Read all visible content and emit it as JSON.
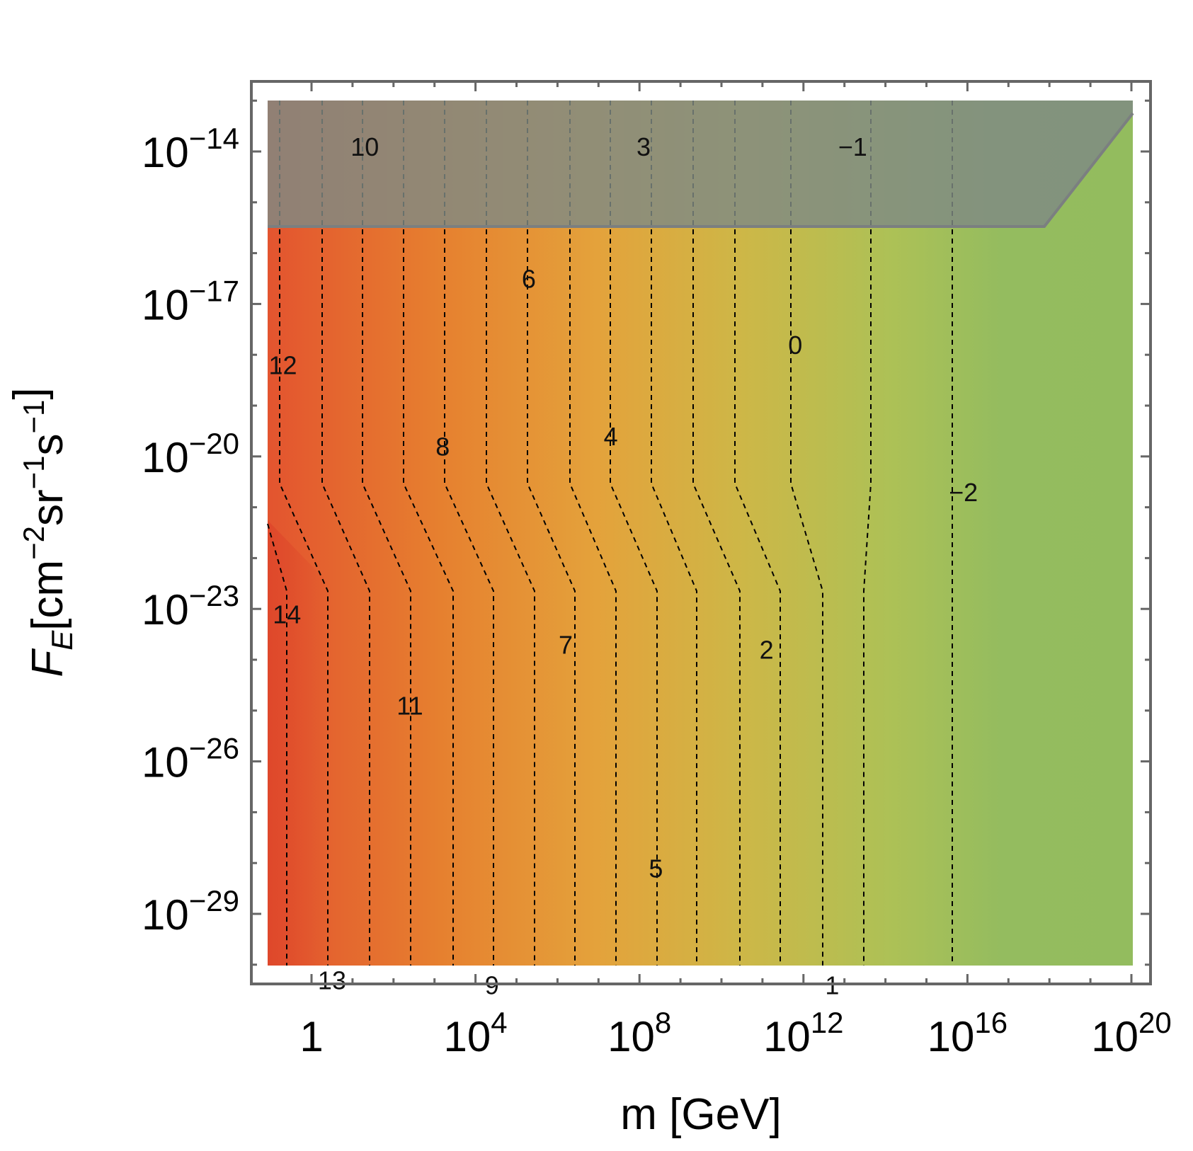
{
  "chart_data": {
    "type": "contour",
    "xlabel": "m [GeV]",
    "ylabel_main": "F",
    "ylabel_sub": "E",
    "ylabel_rest": "[cm",
    "ylabel_units": [
      {
        "base": "[cm",
        "exp": "−2"
      },
      {
        "base": "sr",
        "exp": "−1"
      },
      {
        "base": "s",
        "exp": "−1"
      },
      {
        "base": "]",
        "exp": ""
      }
    ],
    "x_scale": "log",
    "y_scale": "log",
    "xlim_log10": [
      -1.5,
      20
    ],
    "ylim_log10": [
      -30.5,
      -13
    ],
    "x_ticks": [
      {
        "value_log10": 0,
        "label": "1",
        "base": "1",
        "exp": ""
      },
      {
        "value_log10": 4,
        "label": "10^4",
        "base": "10",
        "exp": "4"
      },
      {
        "value_log10": 8,
        "label": "10^8",
        "base": "10",
        "exp": "8"
      },
      {
        "value_log10": 12,
        "label": "10^12",
        "base": "10",
        "exp": "12"
      },
      {
        "value_log10": 16,
        "label": "10^16",
        "base": "10",
        "exp": "16"
      },
      {
        "value_log10": 20,
        "label": "10^20",
        "base": "10",
        "exp": "20"
      }
    ],
    "y_ticks": [
      {
        "value_log10": -14,
        "label": "10^−14",
        "base": "10",
        "exp": "−14"
      },
      {
        "value_log10": -17,
        "label": "10^−17",
        "base": "10",
        "exp": "−17"
      },
      {
        "value_log10": -20,
        "label": "10^−20",
        "base": "10",
        "exp": "−20"
      },
      {
        "value_log10": -23,
        "label": "10^−23",
        "base": "10",
        "exp": "−23"
      },
      {
        "value_log10": -26,
        "label": "10^−26",
        "base": "10",
        "exp": "−26"
      },
      {
        "value_log10": -29,
        "label": "10^−29",
        "base": "10",
        "exp": "−29"
      }
    ],
    "contour_levels": [
      14,
      13,
      12,
      11,
      10,
      9,
      8,
      7,
      6,
      5,
      4,
      3,
      2,
      1,
      0,
      -1,
      -2
    ],
    "contour_labels": [
      {
        "text": "10",
        "x_log10": 1.3,
        "y_log10": -13.9
      },
      {
        "text": "3",
        "x_log10": 8.1,
        "y_log10": -13.9
      },
      {
        "text": "−1",
        "x_log10": 13.2,
        "y_log10": -13.9
      },
      {
        "text": "6",
        "x_log10": 5.3,
        "y_log10": -16.5
      },
      {
        "text": "0",
        "x_log10": 11.8,
        "y_log10": -17.8
      },
      {
        "text": "12",
        "x_log10": -0.7,
        "y_log10": -18.2
      },
      {
        "text": "8",
        "x_log10": 3.2,
        "y_log10": -19.8
      },
      {
        "text": "4",
        "x_log10": 7.3,
        "y_log10": -19.6
      },
      {
        "text": "−2",
        "x_log10": 15.9,
        "y_log10": -20.7
      },
      {
        "text": "14",
        "x_log10": -0.6,
        "y_log10": -23.1
      },
      {
        "text": "7",
        "x_log10": 6.2,
        "y_log10": -23.7
      },
      {
        "text": "2",
        "x_log10": 11.1,
        "y_log10": -23.8
      },
      {
        "text": "11",
        "x_log10": 2.4,
        "y_log10": -24.9
      },
      {
        "text": "5",
        "x_log10": 8.4,
        "y_log10": -28.1
      },
      {
        "text": "13",
        "x_log10": 0.5,
        "y_log10": -30.3
      },
      {
        "text": "9",
        "x_log10": 4.4,
        "y_log10": -30.4
      },
      {
        "text": "1",
        "x_log10": 12.7,
        "y_log10": -30.4
      }
    ],
    "excluded_region": {
      "y_min_log10": -16.5,
      "y_max_log10": -13.5,
      "description": "gray band"
    },
    "colors": {
      "low_level": "#e9e9e9",
      "high_m_green": "#93bc5e",
      "mid_yellow": "#c9b84a",
      "orange": "#e6923a",
      "red": "#dc3f28",
      "excluded_band": "#7f8a84",
      "frame": "#666666"
    }
  }
}
